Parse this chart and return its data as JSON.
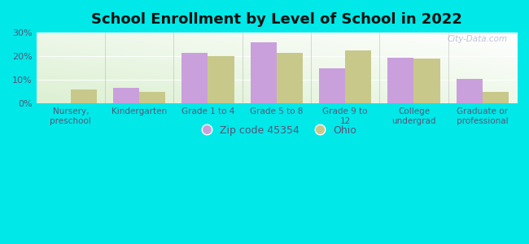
{
  "title": "School Enrollment by Level of School in 2022",
  "categories": [
    "Nursery,\npreschool",
    "Kindergarten",
    "Grade 1 to 4",
    "Grade 5 to 8",
    "Grade 9 to\n12",
    "College\nundergrad",
    "Graduate or\nprofessional"
  ],
  "zip_values": [
    0,
    6.5,
    21.5,
    26.0,
    15.0,
    19.5,
    10.5
  ],
  "ohio_values": [
    6.0,
    4.8,
    20.0,
    21.5,
    22.5,
    19.0,
    5.0
  ],
  "zip_color": "#c9a0dc",
  "ohio_color": "#c8c88a",
  "background_color": "#00e8e8",
  "plot_bg_color": "#e8f5e0",
  "ylim": [
    0,
    30
  ],
  "yticks": [
    0,
    10,
    20,
    30
  ],
  "ytick_labels": [
    "0%",
    "10%",
    "20%",
    "30%"
  ],
  "legend_zip_label": "Zip code 45354",
  "legend_ohio_label": "Ohio",
  "bar_width": 0.38,
  "watermark": "City-Data.com",
  "tick_color": "#555577",
  "title_color": "#111111"
}
